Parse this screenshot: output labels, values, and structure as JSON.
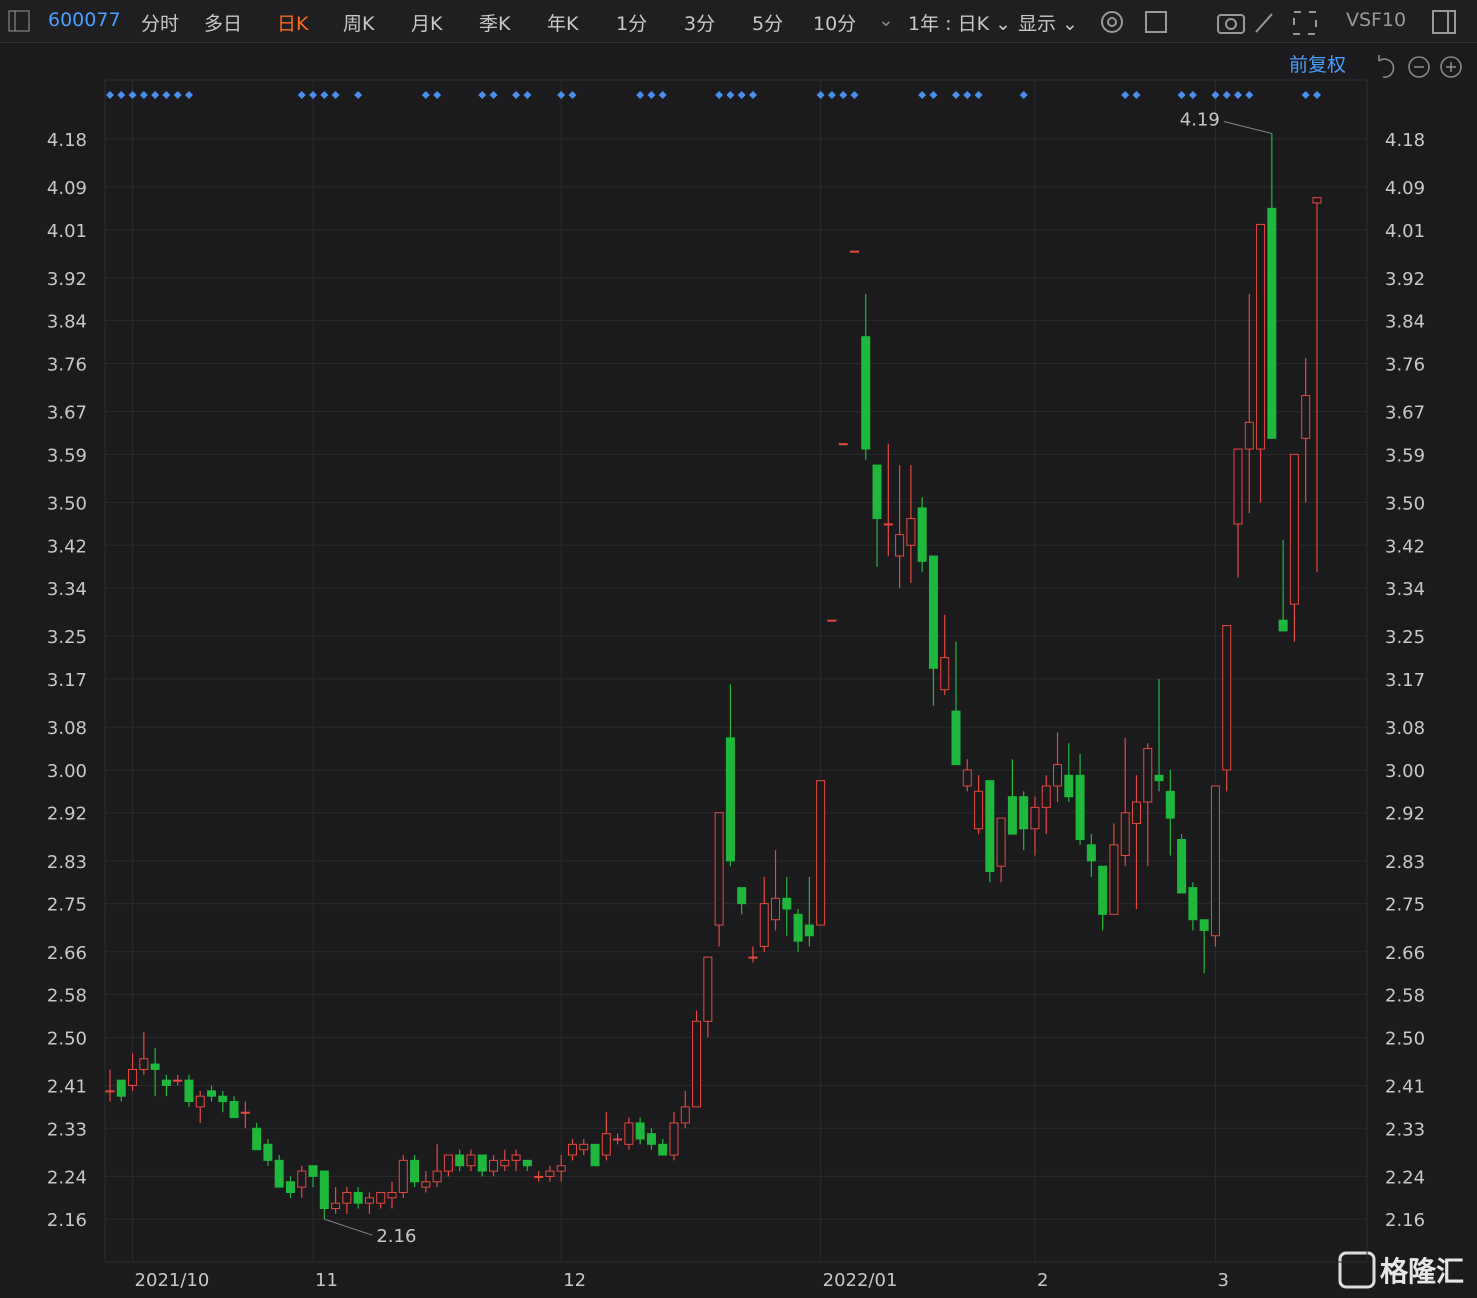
{
  "toolbar": {
    "code": "600077",
    "tabs": [
      "分时",
      "多日",
      "日K",
      "周K",
      "月K",
      "季K",
      "年K",
      "1分",
      "3分",
      "5分",
      "10分"
    ],
    "range": "1年 : 日K ⌄",
    "display": "显示 ⌄",
    "vs": "VS",
    "f10": "F10",
    "adjust": "前复权"
  },
  "logo": "格隆汇",
  "chart_data": {
    "type": "candlestick",
    "categories": [
      null,
      null,
      "2021/10",
      null,
      null,
      null,
      null,
      null,
      null,
      null,
      null,
      null,
      null,
      null,
      null,
      null,
      null,
      null,
      "11",
      null,
      null,
      null,
      null,
      null,
      null,
      null,
      null,
      null,
      null,
      null,
      null,
      null,
      null,
      null,
      null,
      null,
      null,
      null,
      null,
      null,
      "12",
      null,
      null,
      null,
      null,
      null,
      null,
      null,
      null,
      null,
      null,
      null,
      null,
      null,
      null,
      null,
      null,
      null,
      null,
      null,
      null,
      null,
      null,
      "2022/01",
      null,
      null,
      null,
      null,
      null,
      null,
      null,
      null,
      null,
      null,
      null,
      null,
      null,
      null,
      null,
      null,
      null,
      null,
      "2",
      null,
      null,
      null,
      null,
      null,
      null,
      null,
      null,
      null,
      null,
      null,
      null,
      null,
      null,
      null,
      "3",
      null,
      null,
      null,
      null,
      null,
      null,
      null,
      null,
      null
    ],
    "open": [
      2.4,
      2.42,
      2.41,
      2.44,
      2.45,
      2.42,
      2.42,
      2.42,
      2.37,
      2.4,
      2.39,
      2.38,
      2.36,
      2.33,
      2.3,
      2.27,
      2.23,
      2.22,
      2.26,
      2.25,
      2.18,
      2.19,
      2.21,
      2.19,
      2.19,
      2.2,
      2.21,
      2.27,
      2.22,
      2.23,
      2.25,
      2.28,
      2.26,
      2.28,
      2.25,
      2.26,
      2.27,
      2.27,
      2.24,
      2.24,
      2.25,
      2.28,
      2.29,
      2.3,
      2.28,
      2.31,
      2.3,
      2.34,
      2.32,
      2.3,
      2.28,
      2.34,
      2.37,
      2.53,
      2.71,
      3.06,
      2.78,
      2.65,
      2.67,
      2.72,
      2.76,
      2.73,
      2.71,
      2.71,
      3.28,
      3.61,
      3.97,
      3.81,
      3.57,
      3.46,
      3.4,
      3.42,
      3.49,
      3.4,
      3.15,
      3.11,
      2.97,
      2.89,
      2.98,
      2.82,
      2.95,
      2.95,
      2.89,
      2.93,
      2.97,
      2.99,
      2.99,
      2.86,
      2.82,
      2.73,
      2.84,
      2.9,
      2.94,
      2.99,
      2.96,
      2.87,
      2.78,
      2.72,
      2.69,
      3.0,
      3.46,
      3.6,
      3.6,
      4.05,
      3.28,
      3.31,
      3.62,
      4.06
    ],
    "high": [
      2.44,
      2.42,
      2.47,
      2.51,
      2.48,
      2.43,
      2.43,
      2.43,
      2.4,
      2.41,
      2.4,
      2.39,
      2.38,
      2.34,
      2.31,
      2.28,
      2.24,
      2.26,
      2.26,
      2.25,
      2.22,
      2.22,
      2.22,
      2.21,
      2.21,
      2.23,
      2.28,
      2.28,
      2.25,
      2.3,
      2.28,
      2.29,
      2.29,
      2.28,
      2.28,
      2.29,
      2.29,
      2.27,
      2.25,
      2.26,
      2.28,
      2.31,
      2.31,
      2.3,
      2.36,
      2.32,
      2.35,
      2.35,
      2.33,
      2.31,
      2.36,
      2.4,
      2.55,
      2.65,
      2.92,
      3.16,
      2.78,
      2.67,
      2.8,
      2.85,
      2.8,
      2.74,
      2.8,
      2.98,
      3.28,
      3.61,
      3.97,
      3.89,
      3.57,
      3.61,
      3.57,
      3.57,
      3.51,
      3.4,
      3.29,
      3.24,
      3.02,
      2.99,
      2.98,
      2.91,
      3.02,
      2.96,
      2.95,
      2.99,
      3.07,
      3.05,
      3.03,
      2.88,
      2.82,
      2.9,
      3.06,
      2.99,
      3.05,
      3.17,
      3.0,
      2.88,
      2.79,
      2.72,
      2.97,
      3.27,
      3.6,
      3.89,
      4.02,
      4.19,
      3.43,
      3.59,
      3.77,
      4.07
    ],
    "low": [
      2.38,
      2.38,
      2.4,
      2.43,
      2.39,
      2.39,
      2.41,
      2.37,
      2.34,
      2.38,
      2.36,
      2.35,
      2.33,
      2.29,
      2.26,
      2.22,
      2.2,
      2.2,
      2.22,
      2.16,
      2.17,
      2.17,
      2.18,
      2.17,
      2.18,
      2.18,
      2.2,
      2.22,
      2.21,
      2.22,
      2.24,
      2.25,
      2.25,
      2.24,
      2.24,
      2.25,
      2.25,
      2.25,
      2.23,
      2.23,
      2.23,
      2.27,
      2.28,
      2.26,
      2.27,
      2.3,
      2.29,
      2.3,
      2.29,
      2.28,
      2.27,
      2.33,
      2.37,
      2.5,
      2.67,
      2.82,
      2.73,
      2.64,
      2.66,
      2.7,
      2.69,
      2.66,
      2.67,
      2.71,
      3.28,
      3.61,
      3.97,
      3.58,
      3.38,
      3.4,
      3.34,
      3.35,
      3.37,
      3.12,
      3.14,
      3.01,
      2.96,
      2.88,
      2.79,
      2.79,
      2.88,
      2.85,
      2.84,
      2.88,
      2.94,
      2.94,
      2.86,
      2.8,
      2.7,
      2.73,
      2.82,
      2.74,
      2.82,
      2.96,
      2.84,
      2.77,
      2.7,
      2.62,
      2.67,
      2.96,
      3.36,
      3.48,
      3.5,
      3.62,
      3.26,
      3.24,
      3.5,
      3.37
    ],
    "close": [
      2.4,
      2.39,
      2.44,
      2.46,
      2.44,
      2.41,
      2.42,
      2.38,
      2.39,
      2.39,
      2.38,
      2.35,
      2.36,
      2.29,
      2.27,
      2.22,
      2.21,
      2.25,
      2.24,
      2.18,
      2.19,
      2.21,
      2.19,
      2.2,
      2.21,
      2.21,
      2.27,
      2.23,
      2.23,
      2.25,
      2.28,
      2.26,
      2.28,
      2.25,
      2.27,
      2.27,
      2.28,
      2.26,
      2.24,
      2.25,
      2.26,
      2.3,
      2.3,
      2.26,
      2.32,
      2.31,
      2.34,
      2.31,
      2.3,
      2.28,
      2.34,
      2.37,
      2.53,
      2.65,
      2.92,
      2.83,
      2.75,
      2.65,
      2.75,
      2.76,
      2.74,
      2.68,
      2.69,
      2.98,
      3.28,
      3.61,
      3.97,
      3.6,
      3.47,
      3.46,
      3.44,
      3.47,
      3.39,
      3.19,
      3.21,
      3.01,
      3.0,
      2.96,
      2.81,
      2.91,
      2.88,
      2.89,
      2.93,
      2.97,
      3.01,
      2.95,
      2.87,
      2.83,
      2.73,
      2.86,
      2.92,
      2.94,
      3.04,
      2.98,
      2.91,
      2.77,
      2.72,
      2.7,
      2.97,
      3.27,
      3.6,
      3.65,
      4.02,
      3.62,
      3.26,
      3.59,
      3.7,
      4.07
    ],
    "markers": [
      0,
      1,
      2,
      3,
      4,
      5,
      6,
      7,
      17,
      18,
      19,
      20,
      22,
      28,
      29,
      33,
      34,
      36,
      37,
      40,
      41,
      47,
      48,
      49,
      54,
      55,
      56,
      57,
      63,
      64,
      65,
      66,
      72,
      73,
      75,
      76,
      77,
      81,
      90,
      91,
      95,
      96,
      98,
      99,
      100,
      101,
      106,
      107
    ],
    "ylim": [
      2.08,
      4.29
    ],
    "yticks": [
      2.16,
      2.24,
      2.33,
      2.41,
      {
        "value": 2.5,
        "label": "2.50"
      },
      2.58,
      2.66,
      2.75,
      2.83,
      2.92,
      {
        "value": 3,
        "label": "3.00"
      },
      3.08,
      3.17,
      3.25,
      3.34,
      3.42,
      {
        "value": 3.5,
        "label": "3.50"
      },
      3.59,
      3.67,
      3.76,
      3.84,
      3.92,
      4.01,
      4.09,
      4.18
    ],
    "grid": true,
    "up_color": "#e5493f",
    "down_color": "#1fb83c",
    "marker_color": "#4a8ff0",
    "show_extremes": true
  }
}
